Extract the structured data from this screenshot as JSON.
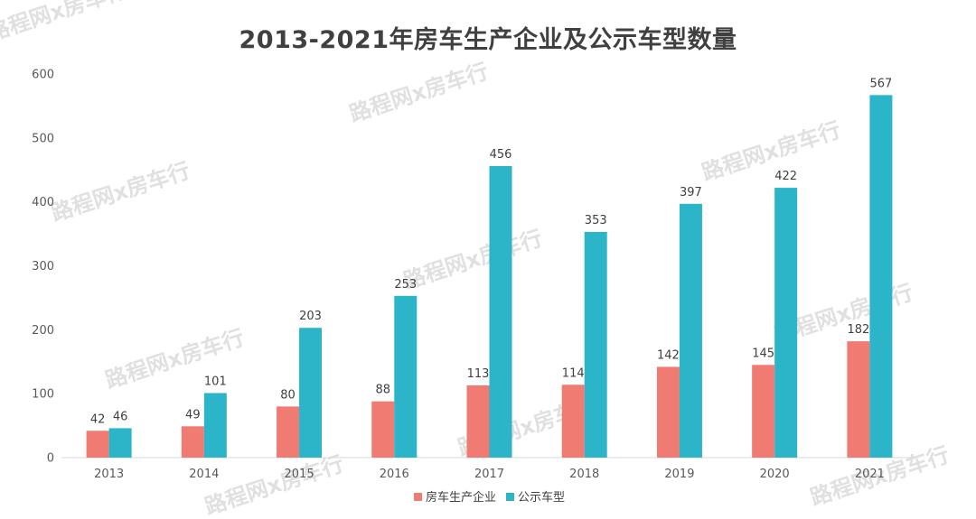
{
  "chart_data": {
    "type": "bar",
    "title": "2013-2021年房车生产企业及公示车型数量",
    "categories": [
      "2013",
      "2014",
      "2015",
      "2016",
      "2017",
      "2018",
      "2019",
      "2020",
      "2021"
    ],
    "series": [
      {
        "name": "房车生产企业",
        "color": "#f07b72",
        "values": [
          42,
          49,
          80,
          88,
          113,
          114,
          142,
          145,
          182
        ]
      },
      {
        "name": "公示车型",
        "color": "#2cb5c8",
        "values": [
          46,
          101,
          203,
          253,
          456,
          353,
          397,
          422,
          567
        ]
      }
    ],
    "ylim": [
      0,
      600
    ],
    "yticks": [
      0,
      100,
      200,
      300,
      400,
      500,
      600
    ],
    "grid": false,
    "legend": "bottom",
    "data_labels": true
  },
  "watermark": "路程网x房车行"
}
